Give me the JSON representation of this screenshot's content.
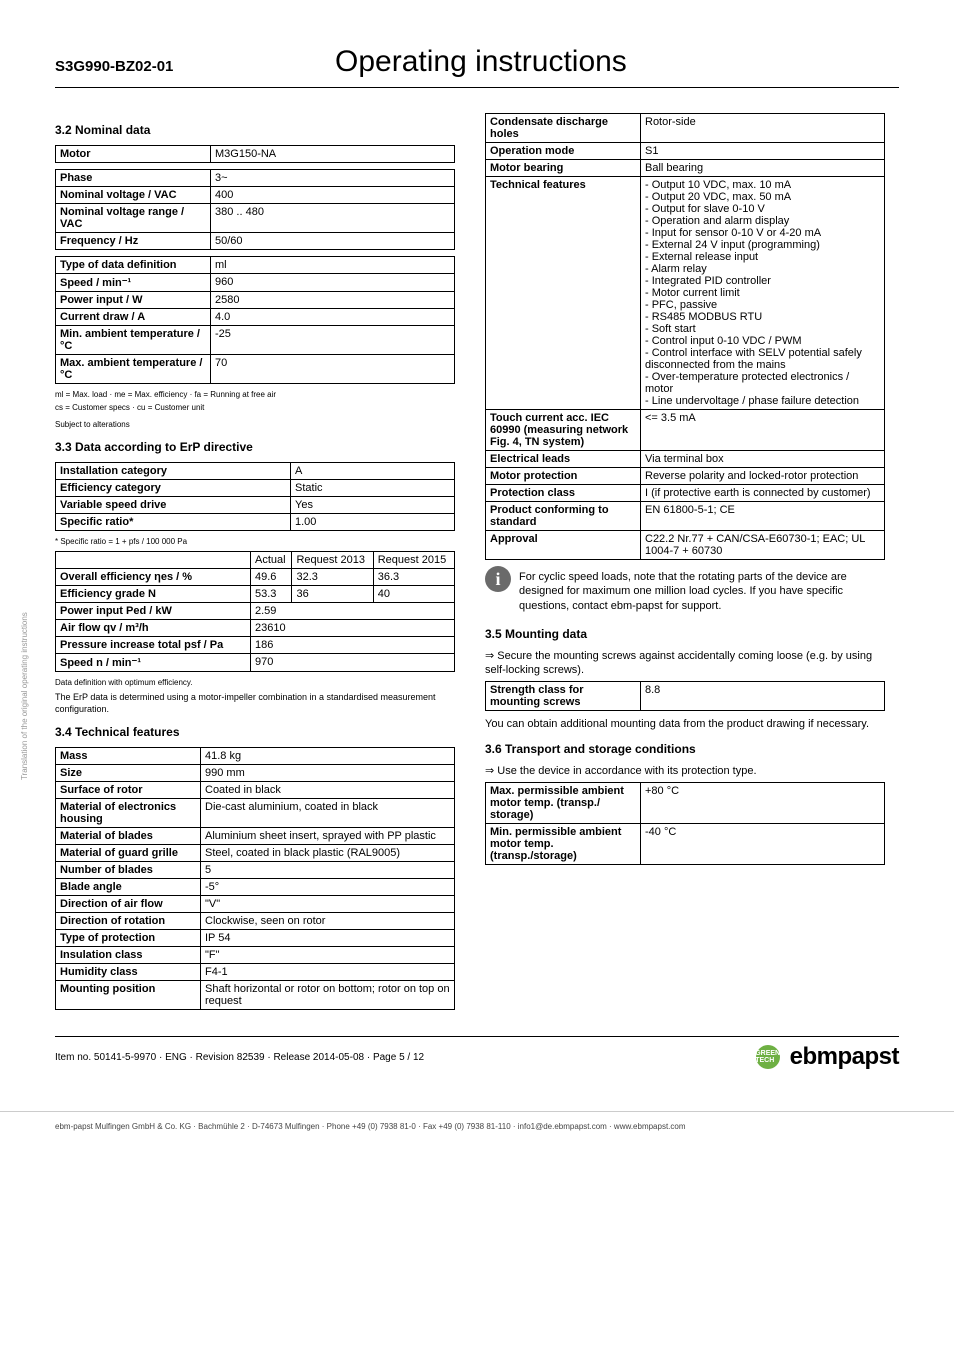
{
  "side_text": "Translation of the original operating instructions",
  "header": {
    "code": "S3G990-BZ02-01",
    "title": "Operating instructions"
  },
  "s32": {
    "heading": "3.2 Nominal data",
    "motor_label": "Motor",
    "motor_value": "M3G150-NA",
    "rows1": [
      {
        "l": "Phase",
        "v": "3~"
      },
      {
        "l": "Nominal voltage / VAC",
        "v": "400"
      },
      {
        "l": "Nominal voltage range / VAC",
        "v": "380 .. 480"
      },
      {
        "l": "Frequency / Hz",
        "v": "50/60"
      }
    ],
    "rows2": [
      {
        "l": "Type of data definition",
        "v": "ml"
      },
      {
        "l": "Speed / min⁻¹",
        "v": "960"
      },
      {
        "l": "Power input / W",
        "v": "2580"
      },
      {
        "l": "Current draw / A",
        "v": "4.0"
      },
      {
        "l": "Min. ambient temperature / °C",
        "v": "-25"
      },
      {
        "l": "Max. ambient temperature / °C",
        "v": "70"
      }
    ],
    "note1": "ml = Max. load · me = Max. efficiency · fa = Running at free air",
    "note2": "cs = Customer specs · cu = Customer unit",
    "note3": "Subject to alterations"
  },
  "s33": {
    "heading": "3.3 Data according to ErP directive",
    "rows1": [
      {
        "l": "Installation category",
        "v": "A"
      },
      {
        "l": "Efficiency category",
        "v": "Static"
      },
      {
        "l": "Variable speed drive",
        "v": "Yes"
      },
      {
        "l": "Specific ratio*",
        "v": "1.00"
      }
    ],
    "note1": "* Specific ratio = 1 + pfs / 100 000 Pa",
    "header": [
      "",
      "Actual",
      "Request 2013",
      "Request 2015"
    ],
    "rows2": [
      {
        "l": "Overall efficiency ηes / %",
        "a": "49.6",
        "b": "32.3",
        "c": "36.3"
      },
      {
        "l": "Efficiency grade N",
        "a": "53.3",
        "b": "36",
        "c": "40"
      },
      {
        "l": "Power input Ped / kW",
        "a": "2.59",
        "b": "",
        "c": ""
      },
      {
        "l": "Air flow qv / m³/h",
        "a": "23610",
        "b": "",
        "c": ""
      },
      {
        "l": "Pressure increase total psf / Pa",
        "a": "186",
        "b": "",
        "c": ""
      },
      {
        "l": "Speed n / min⁻¹",
        "a": "970",
        "b": "",
        "c": ""
      }
    ],
    "note2": "Data definition with optimum efficiency.",
    "note3": "The ErP data is determined using a motor-impeller combination in a standardised measurement configuration."
  },
  "s34": {
    "heading": "3.4 Technical features",
    "rows": [
      {
        "l": "Mass",
        "v": "41.8 kg"
      },
      {
        "l": "Size",
        "v": "990 mm"
      },
      {
        "l": "Surface of rotor",
        "v": "Coated in black"
      },
      {
        "l": "Material of electronics housing",
        "v": "Die-cast aluminium, coated in black"
      },
      {
        "l": "Material of blades",
        "v": "Aluminium sheet insert, sprayed with PP plastic"
      },
      {
        "l": "Material of guard grille",
        "v": "Steel, coated in black plastic (RAL9005)"
      },
      {
        "l": "Number of blades",
        "v": "5"
      },
      {
        "l": "Blade angle",
        "v": "-5°"
      },
      {
        "l": "Direction of air flow",
        "v": "\"V\""
      },
      {
        "l": "Direction of rotation",
        "v": "Clockwise, seen on rotor"
      },
      {
        "l": "Type of protection",
        "v": "IP 54"
      },
      {
        "l": "Insulation class",
        "v": "\"F\""
      },
      {
        "l": "Humidity class",
        "v": "F4-1"
      },
      {
        "l": "Mounting position",
        "v": "Shaft horizontal or rotor on bottom; rotor on top on request"
      }
    ]
  },
  "s34b": {
    "rows": [
      {
        "l": "Condensate discharge holes",
        "v": "Rotor-side"
      },
      {
        "l": "Operation mode",
        "v": "S1"
      },
      {
        "l": "Motor bearing",
        "v": "Ball bearing"
      },
      {
        "l": "Technical features",
        "v": "- Output 10 VDC, max. 10 mA\n- Output 20 VDC, max. 50 mA\n- Output for slave 0-10 V\n- Operation and alarm display\n- Input for sensor 0-10 V or 4-20 mA\n- External 24 V input (programming)\n- External release input\n- Alarm relay\n- Integrated PID controller\n- Motor current limit\n- PFC, passive\n- RS485 MODBUS RTU\n- Soft start\n- Control input 0-10 VDC / PWM\n- Control interface with SELV potential safely disconnected from the mains\n- Over-temperature protected electronics / motor\n- Line undervoltage / phase failure detection"
      },
      {
        "l": "Touch current acc. IEC 60990 (measuring network Fig. 4, TN system)",
        "v": "<= 3.5 mA"
      },
      {
        "l": "Electrical leads",
        "v": "Via terminal box"
      },
      {
        "l": "Motor protection",
        "v": "Reverse polarity and locked-rotor protection"
      },
      {
        "l": "Protection class",
        "v": "I (if protective earth is connected by customer)"
      },
      {
        "l": "Product conforming to standard",
        "v": "EN 61800-5-1; CE"
      },
      {
        "l": "Approval",
        "v": "C22.2 Nr.77 + CAN/CSA-E60730-1; EAC; UL 1004-7 + 60730"
      }
    ],
    "info": "For cyclic speed loads, note that the rotating parts of the device are designed for maximum one million load cycles. If you have specific questions, contact ebm-papst for support."
  },
  "s35": {
    "heading": "3.5 Mounting data",
    "bullet": "Secure the mounting screws against accidentally coming loose (e.g. by using self-locking screws).",
    "rows": [
      {
        "l": "Strength class for mounting screws",
        "v": "8.8"
      }
    ],
    "note": "You can obtain additional mounting data from the product drawing if necessary."
  },
  "s36": {
    "heading": "3.6 Transport and storage conditions",
    "bullet": "Use the device in accordance with its protection type.",
    "rows": [
      {
        "l": "Max. permissible ambient motor temp. (transp./ storage)",
        "v": "+80 °C"
      },
      {
        "l": "Min. permissible ambient motor temp. (transp./storage)",
        "v": "-40 °C"
      }
    ]
  },
  "footer": {
    "left": "Item no. 50141-5-9970 · ENG · Revision 82539 · Release 2014-05-08 · Page 5 / 12",
    "green": "GREEN TECH",
    "logo": "ebmpapst",
    "bottom": "ebm-papst Mulfingen GmbH & Co. KG · Bachmühle 2 · D-74673 Mulfingen · Phone +49 (0) 7938 81-0 · Fax +49 (0) 7938 81-110 · info1@de.ebmpapst.com · www.ebmpapst.com"
  }
}
